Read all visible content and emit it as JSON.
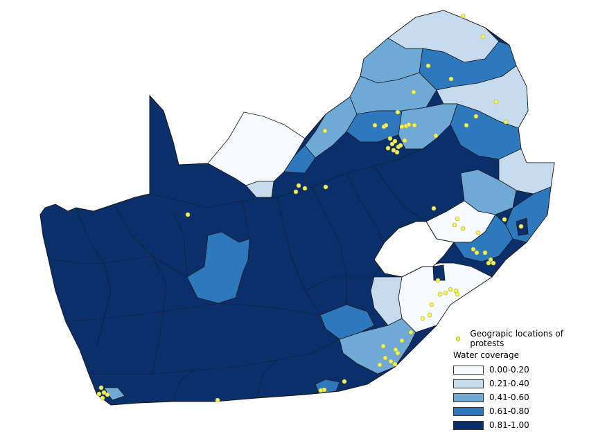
{
  "legend": {
    "protest_label": "Geograpic locations of protests",
    "title": "Water coverage",
    "classes": [
      {
        "label": "0.00-0.20",
        "color": "#f6f9fd"
      },
      {
        "label": "0.21-0.40",
        "color": "#c7dbef"
      },
      {
        "label": "0.41-0.60",
        "color": "#6fa9d5"
      },
      {
        "label": "0.61-0.80",
        "color": "#2e78bd"
      },
      {
        "label": "0.81-1.00",
        "color": "#0a2f6b"
      }
    ]
  },
  "colors": {
    "protest_point": "#f4f25a",
    "boundary": "#1a1a1a",
    "lesotho": "#ffffff"
  }
}
